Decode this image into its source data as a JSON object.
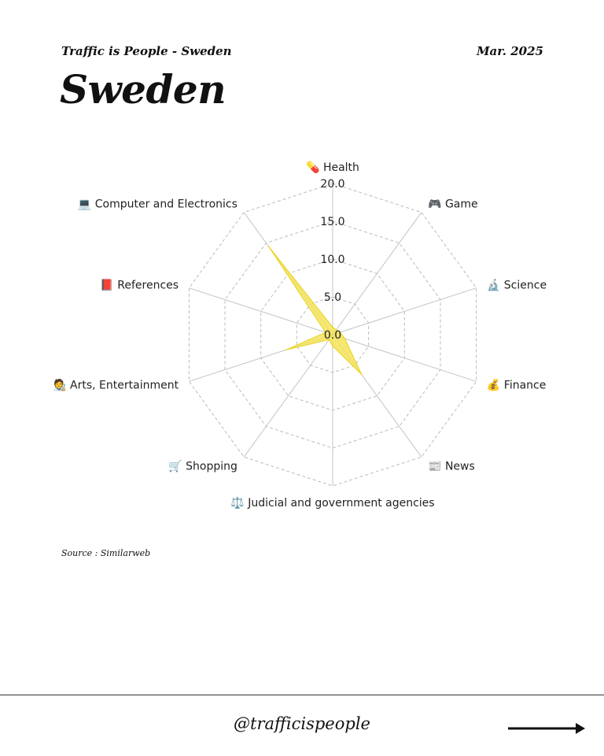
{
  "header": {
    "subtitle": "Traffic is People - Sweden",
    "date": "Mar. 2025",
    "title": "Sweden"
  },
  "footer": {
    "source": "Source : Similarweb",
    "handle": "@trafficispeople"
  },
  "chart_data": {
    "type": "radar",
    "categories": [
      "💊 Health",
      "🎮 Game",
      "🔬 Science",
      "💰 Finance",
      "📰 News",
      "⚖️ Judicial and government agencies",
      "🛒 Shopping",
      "🧑‍🎨 Arts, Entertainment",
      "📕 References",
      "💻 Computer and Electronics"
    ],
    "values": [
      1.0,
      0.8,
      1.0,
      1.7,
      6.5,
      1.5,
      0.8,
      6.5,
      1.0,
      14.5
    ],
    "rlim": [
      0,
      20
    ],
    "ticks": [
      "0.0",
      "5.0",
      "10.0",
      "15.0",
      "20.0"
    ],
    "grid": true,
    "fill_color": "#f5e35a",
    "stroke_color": "#e8d21f"
  }
}
